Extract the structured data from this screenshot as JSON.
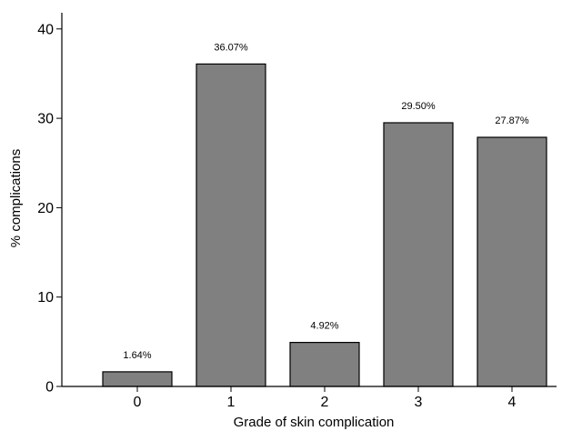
{
  "chart_data": {
    "type": "bar",
    "title": "",
    "xlabel": "Grade of skin complication",
    "ylabel": "% complications",
    "categories": [
      "0",
      "1",
      "2",
      "3",
      "4"
    ],
    "values": [
      1.64,
      36.07,
      4.92,
      29.5,
      27.87
    ],
    "data_labels": [
      "1.64%",
      "36.07%",
      "4.92%",
      "29.50%",
      "27.87%"
    ],
    "ylim": [
      0,
      42
    ],
    "yticks": [
      0,
      10,
      20,
      30,
      40
    ],
    "ytick_labels": [
      "0",
      "10",
      "20",
      "30",
      "40"
    ],
    "grid": false,
    "legend": "none",
    "bar_color": "#808080",
    "edge_color": "#000000"
  }
}
